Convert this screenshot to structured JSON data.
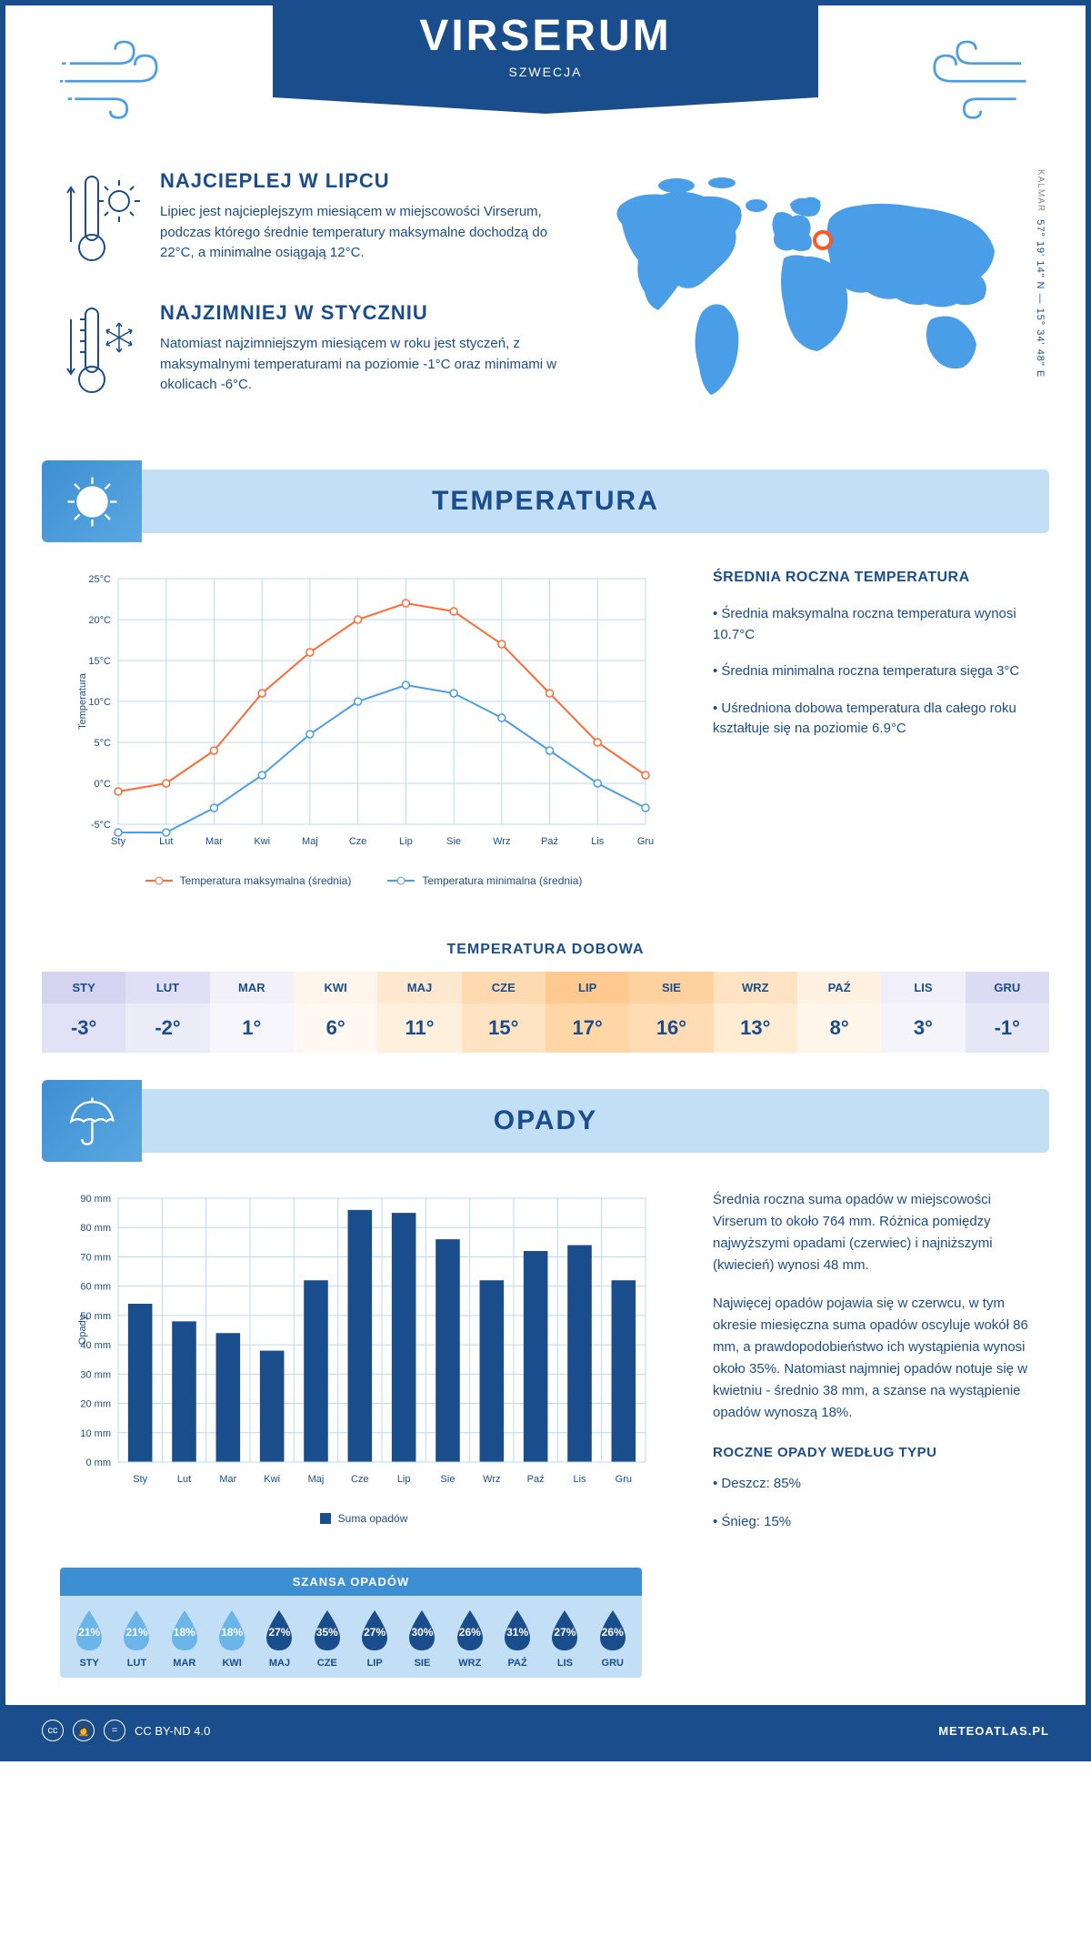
{
  "header": {
    "city": "VIRSERUM",
    "country": "SZWECJA"
  },
  "coords": {
    "region": "KALMAR",
    "lat": "57° 19' 14\" N",
    "lon": "15° 34' 48\" E"
  },
  "marker": {
    "left_pct": 50,
    "top_pct": 23
  },
  "warmest": {
    "title": "NAJCIEPLEJ W LIPCU",
    "text": "Lipiec jest najcieplejszym miesiącem w miejscowości Virserum, podczas którego średnie temperatury maksymalne dochodzą do 22°C, a minimalne osiągają 12°C."
  },
  "coldest": {
    "title": "NAJZIMNIEJ W STYCZNIU",
    "text": "Natomiast najzimniejszym miesiącem w roku jest styczeń, z maksymalnymi temperaturami na poziomie -1°C oraz minimami w okolicach -6°C."
  },
  "temp_section": {
    "title": "TEMPERATURA"
  },
  "temp_chart": {
    "type": "line",
    "months": [
      "Sty",
      "Lut",
      "Mar",
      "Kwi",
      "Maj",
      "Cze",
      "Lip",
      "Sie",
      "Wrz",
      "Paź",
      "Lis",
      "Gru"
    ],
    "max_series": [
      -1,
      0,
      4,
      11,
      16,
      20,
      22,
      21,
      17,
      11,
      5,
      1
    ],
    "min_series": [
      -6,
      -6,
      -3,
      1,
      6,
      10,
      12,
      11,
      8,
      4,
      0,
      -3
    ],
    "ylim": [
      -5,
      25
    ],
    "ytick_step": 5,
    "ylabel": "Temperatura",
    "max_color": "#ff6b35",
    "min_color": "#4a9ee8",
    "grid_color": "#bcd9f0",
    "line_width": 2,
    "marker_size": 4,
    "legend_max": "Temperatura maksymalna (średnia)",
    "legend_min": "Temperatura minimalna (średnia)"
  },
  "temp_annual": {
    "title": "ŚREDNIA ROCZNA TEMPERATURA",
    "bullets": [
      "• Średnia maksymalna roczna temperatura wynosi 10.7°C",
      "• Średnia minimalna roczna temperatura sięga 3°C",
      "• Uśredniona dobowa temperatura dla całego roku kształtuje się na poziomie 6.9°C"
    ]
  },
  "daily_temp": {
    "title": "TEMPERATURA DOBOWA",
    "months": [
      "STY",
      "LUT",
      "MAR",
      "KWI",
      "MAJ",
      "CZE",
      "LIP",
      "SIE",
      "WRZ",
      "PAŹ",
      "LIS",
      "GRU"
    ],
    "values": [
      "-3°",
      "-2°",
      "1°",
      "6°",
      "11°",
      "15°",
      "17°",
      "16°",
      "13°",
      "8°",
      "3°",
      "-1°"
    ],
    "bg_month": [
      "#d4d3f0",
      "#e0dff5",
      "#f2f1fa",
      "#fff5ea",
      "#ffe8cf",
      "#ffd9b0",
      "#ffc98f",
      "#ffd19e",
      "#ffe3c2",
      "#fff1e1",
      "#f0effa",
      "#dcdbf3"
    ],
    "bg_val": [
      "#e2e1f5",
      "#ecebf8",
      "#f7f6fc",
      "#fff9f1",
      "#fff0de",
      "#ffe4c4",
      "#ffd6a6",
      "#ffdcb3",
      "#ffecd3",
      "#fff6eb",
      "#f5f4fb",
      "#e7e6f6"
    ]
  },
  "precip_section": {
    "title": "OPADY"
  },
  "precip_chart": {
    "type": "bar",
    "months": [
      "Sty",
      "Lut",
      "Mar",
      "Kwi",
      "Maj",
      "Cze",
      "Lip",
      "Sie",
      "Wrz",
      "Paź",
      "Lis",
      "Gru"
    ],
    "values": [
      54,
      48,
      44,
      38,
      62,
      86,
      85,
      76,
      62,
      72,
      74,
      62
    ],
    "ylim": [
      0,
      90
    ],
    "ytick_step": 10,
    "ylabel": "Opady",
    "bar_color": "#1a4d8c",
    "grid_color": "#bcd9f0",
    "bar_width": 0.55,
    "legend": "Suma opadów"
  },
  "precip_text": {
    "p1": "Średnia roczna suma opadów w miejscowości Virserum to około 764 mm. Różnica pomiędzy najwyższymi opadami (czerwiec) i najniższymi (kwiecień) wynosi 48 mm.",
    "p2": "Najwięcej opadów pojawia się w czerwcu, w tym okresie miesięczna suma opadów oscyluje wokół 86 mm, a prawdopodobieństwo ich wystąpienia wynosi około 35%. Natomiast najmniej opadów notuje się w kwietniu - średnio 38 mm, a szanse na wystąpienie opadów wynoszą 18%.",
    "type_title": "ROCZNE OPADY WEDŁUG TYPU",
    "rain": "• Deszcz: 85%",
    "snow": "• Śnieg: 15%"
  },
  "chance": {
    "title": "SZANSA OPADÓW",
    "months": [
      "STY",
      "LUT",
      "MAR",
      "KWI",
      "MAJ",
      "CZE",
      "LIP",
      "SIE",
      "WRZ",
      "PAŹ",
      "LIS",
      "GRU"
    ],
    "pct": [
      "21%",
      "21%",
      "18%",
      "18%",
      "27%",
      "35%",
      "27%",
      "30%",
      "26%",
      "31%",
      "27%",
      "26%"
    ],
    "light_color": "#6bb5e8",
    "dark_color": "#1a4d8c",
    "dark_threshold_idx": 4
  },
  "footer": {
    "license": "CC BY-ND 4.0",
    "site": "METEOATLAS.PL"
  }
}
